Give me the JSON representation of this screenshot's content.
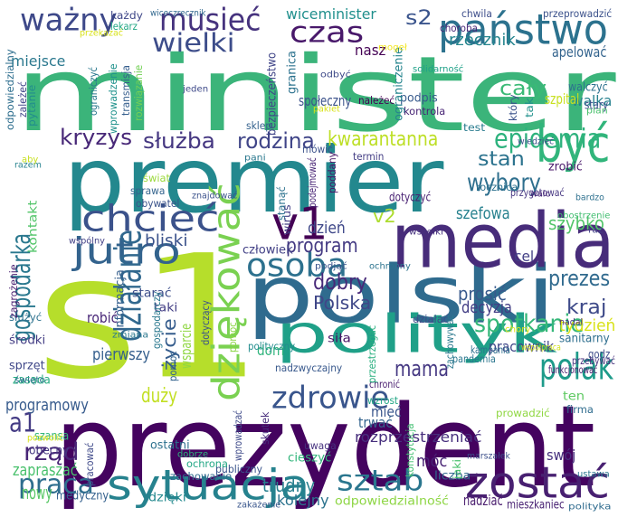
{
  "words": [
    {
      "text": "minister",
      "color": "#3bb47a"
    },
    {
      "text": "prezydent",
      "color": "#44035f"
    },
    {
      "text": "s1",
      "color": "#b6de2b"
    },
    {
      "text": "premier",
      "color": "#23888e"
    },
    {
      "text": "polski",
      "color": "#2f6b8e"
    },
    {
      "text": "media",
      "color": "#472c7a"
    },
    {
      "text": "polityk",
      "color": "#1fa088"
    },
    {
      "text": "dziękować",
      "color": "#7ad151"
    },
    {
      "text": "państwo",
      "color": "#2c728e"
    },
    {
      "text": "być",
      "color": "#31b57b"
    },
    {
      "text": "sytuacja",
      "color": "#26828e"
    },
    {
      "text": "zostać",
      "color": "#482071"
    },
    {
      "text": "polak",
      "color": "#1e9b8a"
    },
    {
      "text": "chcieć",
      "color": "#3b528b"
    },
    {
      "text": "jutro",
      "color": "#33638d"
    },
    {
      "text": "v1",
      "color": "#440154"
    },
    {
      "text": "osoba",
      "color": "#2d718e"
    },
    {
      "text": "zdrowie",
      "color": "#39558c"
    },
    {
      "text": "ważny",
      "color": "#3e4989"
    },
    {
      "text": "musieć",
      "color": "#46337e"
    },
    {
      "text": "czas",
      "color": "#48186a"
    },
    {
      "text": "wielki",
      "color": "#3d4d8a"
    },
    {
      "text": "działanie",
      "color": "#31688e"
    },
    {
      "text": "epidemia",
      "color": "#2db27d"
    },
    {
      "text": "spotkanie",
      "color": "#35b779"
    },
    {
      "text": "sztab",
      "color": "#2a768e"
    },
    {
      "text": "praca",
      "color": "#2e6e8e"
    },
    {
      "text": "rząd",
      "color": "#482576"
    },
    {
      "text": "kryzys",
      "color": "#482878"
    },
    {
      "text": "służba",
      "color": "#453781"
    },
    {
      "text": "rodzina",
      "color": "#404588"
    },
    {
      "text": "kwarantanna",
      "color": "#bddf26"
    },
    {
      "text": "wybory",
      "color": "#2e6f8e"
    },
    {
      "text": "gospodarka",
      "color": "#2a788e"
    },
    {
      "text": "program",
      "color": "#443a83"
    },
    {
      "text": "dobry",
      "color": "#482979"
    },
    {
      "text": "Polska",
      "color": "#3f4788"
    },
    {
      "text": "prezes",
      "color": "#306a8e"
    },
    {
      "text": "mama",
      "color": "#453882"
    },
    {
      "text": "a1",
      "color": "#443b84"
    },
    {
      "text": "s2",
      "color": "#3a548c"
    },
    {
      "text": "v2",
      "color": "#addc30"
    },
    {
      "text": "wiceminister",
      "color": "#21908d"
    },
    {
      "text": "rzecznik",
      "color": "#25858e"
    },
    {
      "text": "stan",
      "color": "#2c738e"
    },
    {
      "text": "cały",
      "color": "#3aba76"
    },
    {
      "text": "szefowa",
      "color": "#26818e"
    },
    {
      "text": "szybko",
      "color": "#52c569"
    },
    {
      "text": "kraj",
      "color": "#3e4a89"
    },
    {
      "text": "tydzień",
      "color": "#d8e219"
    },
    {
      "text": "prosić",
      "color": "#38598c"
    },
    {
      "text": "decyzja",
      "color": "#433e85"
    },
    {
      "text": "życie",
      "color": "#365d8d"
    },
    {
      "text": "duży",
      "color": "#c2df23"
    },
    {
      "text": "trudny",
      "color": "#277f8e"
    },
    {
      "text": "nowy",
      "color": "#58c765"
    },
    {
      "text": "dzień",
      "color": "#3f4889"
    },
    {
      "text": "bliski",
      "color": "#3b528b"
    },
    {
      "text": "robić",
      "color": "#482677"
    },
    {
      "text": "pierwszy",
      "color": "#355f8d"
    },
    {
      "text": "programowy",
      "color": "#375b8d"
    },
    {
      "text": "zapraszać",
      "color": "#4ac16d"
    },
    {
      "text": "kolejny",
      "color": "#2c738e"
    },
    {
      "text": "móc",
      "color": "#482374"
    },
    {
      "text": "nadziać",
      "color": "#481b6d"
    },
    {
      "text": "walka",
      "color": "#26818e"
    },
    {
      "text": "miejsce",
      "color": "#2a788e"
    },
    {
      "text": "apelować",
      "color": "#33638d"
    },
    {
      "text": "nasz",
      "color": "#440154"
    },
    {
      "text": "człowiek",
      "color": "#424086"
    },
    {
      "text": "rozprzestrzeniać",
      "color": "#472f7d"
    },
    {
      "text": "pracownik",
      "color": "#404688"
    },
    {
      "text": "sanitarny",
      "color": "#2e6e8e"
    },
    {
      "text": "mieć",
      "color": "#39558c"
    },
    {
      "text": "trwać",
      "color": "#33638d"
    },
    {
      "text": "dom",
      "color": "#2fb47c"
    },
    {
      "text": "wsparcie",
      "color": "#90d743"
    },
    {
      "text": "starać",
      "color": "#3d4e8a"
    },
    {
      "text": "medyczny",
      "color": "#34608d"
    },
    {
      "text": "zachowanie",
      "color": "#306a8e"
    },
    {
      "text": "ochrona",
      "color": "#22a785"
    },
    {
      "text": "odpowiedzialność",
      "color": "#8ed645"
    },
    {
      "text": "mieszkaniec",
      "color": "#482173"
    },
    {
      "text": "dzięki",
      "color": "#23898e"
    },
    {
      "text": "cieszyć",
      "color": "#31b57b"
    },
    {
      "text": "firma",
      "color": "#2f6c8e"
    },
    {
      "text": "swój",
      "color": "#46307e"
    },
    {
      "text": "ten",
      "color": "#5ec962"
    },
    {
      "text": "szpital",
      "color": "#c8e020"
    },
    {
      "text": "stary",
      "color": "#3c508b"
    },
    {
      "text": "walczyć",
      "color": "#2c718e"
    },
    {
      "text": "zrobić",
      "color": "#481769"
    },
    {
      "text": "przygotować",
      "color": "#453581"
    },
    {
      "text": "dotyczyć",
      "color": "#482172"
    },
    {
      "text": "kampania",
      "color": "#2e6f8e"
    },
    {
      "text": "godz",
      "color": "#3e4c8a"
    },
    {
      "text": "siła",
      "color": "#471365"
    },
    {
      "text": "cel",
      "color": "#423f85"
    },
    {
      "text": "podpis",
      "color": "#375a8c"
    },
    {
      "text": "kontrola",
      "color": "#482475"
    },
    {
      "text": "społeczny",
      "color": "#3b528b"
    },
    {
      "text": "granica",
      "color": "#2c728e"
    },
    {
      "text": "ograniczenie",
      "color": "#25848e"
    },
    {
      "text": "informacja",
      "color": "#355f8d"
    },
    {
      "text": "kontakt",
      "color": "#52c569"
    },
    {
      "text": "zasada",
      "color": "#27ad81"
    },
    {
      "text": "sprzęt",
      "color": "#3f4788"
    },
    {
      "text": "szansa",
      "color": "#31b57b"
    },
    {
      "text": "obecny",
      "color": "#453781"
    },
    {
      "text": "ostatni",
      "color": "#2d718e"
    },
    {
      "text": "publiczny",
      "color": "#3a548c"
    },
    {
      "text": "uwaga",
      "color": "#46327e"
    },
    {
      "text": "liczba",
      "color": "#31688e"
    },
    {
      "text": "prowadzić",
      "color": "#90d743"
    },
    {
      "text": "nadzwyczajny",
      "color": "#38588c"
    },
    {
      "text": "chronić",
      "color": "#481c6e"
    },
    {
      "text": "funkcjonować",
      "color": "#481b6d"
    },
    {
      "text": "przebywać",
      "color": "#472e7c"
    },
    {
      "text": "współpraca",
      "color": "#d0e11c"
    },
    {
      "text": "pandemia",
      "color": "#2a768e"
    },
    {
      "text": "wzrost",
      "color": "#21a685"
    },
    {
      "text": "skutek",
      "color": "#472d7b"
    },
    {
      "text": "środki",
      "color": "#433d84"
    },
    {
      "text": "służyć",
      "color": "#2c718e"
    },
    {
      "text": "świat",
      "color": "#9bd93c"
    },
    {
      "text": "sprawa",
      "color": "#33638d"
    },
    {
      "text": "obywatel",
      "color": "#3a538b"
    },
    {
      "text": "znajdować",
      "color": "#3b528b"
    },
    {
      "text": "wprowadzać",
      "color": "#3e4a89"
    },
    {
      "text": "wprowadzenie",
      "color": "#20928c"
    },
    {
      "text": "transmisja",
      "color": "#355e8d"
    },
    {
      "text": "rozwiązanie",
      "color": "#73d056"
    },
    {
      "text": "ograniczyć",
      "color": "#2a788e"
    },
    {
      "text": "pytanie",
      "color": "#228d8d"
    },
    {
      "text": "odpowiedzialny",
      "color": "#2e6e8e"
    },
    {
      "text": "zależeć",
      "color": "#404588"
    },
    {
      "text": "razem",
      "color": "#26828e"
    },
    {
      "text": "aby",
      "color": "#c8e020"
    },
    {
      "text": "bezpieczeństwo",
      "color": "#404588"
    },
    {
      "text": "sklep",
      "color": "#34618d"
    },
    {
      "text": "mówić",
      "color": "#3b518b"
    },
    {
      "text": "termin",
      "color": "#433d84"
    },
    {
      "text": "podejmować",
      "color": "#482475"
    },
    {
      "text": "poddany",
      "color": "#481467"
    },
    {
      "text": "rocznica",
      "color": "#2c718e"
    },
    {
      "text": "zagrożenie",
      "color": "#481f70"
    },
    {
      "text": "każdy",
      "color": "#3f4788"
    },
    {
      "text": "lekarz",
      "color": "#22a785"
    },
    {
      "text": "wiceczrecznik",
      "color": "#31688e"
    },
    {
      "text": "mogeł",
      "color": "#f1e51d"
    },
    {
      "text": "chwila",
      "color": "#3d4d8a"
    },
    {
      "text": "choroba",
      "color": "#482878"
    },
    {
      "text": "przeprowadzić",
      "color": "#3b518b"
    },
    {
      "text": "solidarność",
      "color": "#1fa188"
    },
    {
      "text": "należeć",
      "color": "#440154"
    },
    {
      "text": "odbyć",
      "color": "#3e4a89"
    },
    {
      "text": "pani",
      "color": "#2a788e"
    },
    {
      "text": "jeden",
      "color": "#3e4989"
    },
    {
      "text": "przekazać",
      "color": "#d8e219"
    },
    {
      "text": "pakiet",
      "color": "#d8e219"
    },
    {
      "text": "bardzo",
      "color": "#2d708e"
    },
    {
      "text": "obostrzenie",
      "color": "#42be71"
    },
    {
      "text": "raz",
      "color": "#414287"
    },
    {
      "text": "wszelki",
      "color": "#46307e"
    },
    {
      "text": "ochronny",
      "color": "#2c738e"
    },
    {
      "text": "podjąć",
      "color": "#3a548c"
    },
    {
      "text": "stanąć",
      "color": "#2c728e"
    },
    {
      "text": "wirus",
      "color": "#433e85"
    },
    {
      "text": "wspólny",
      "color": "#424186"
    },
    {
      "text": "polityczny",
      "color": "#228c8d"
    },
    {
      "text": "działać",
      "color": "#3e4c8a"
    },
    {
      "text": "przestrzegać",
      "color": "#29af7f"
    },
    {
      "text": "zachowywać",
      "color": "#2a788e"
    },
    {
      "text": "chory",
      "color": "#e2e418"
    },
    {
      "text": "nadal",
      "color": "#472d7b"
    },
    {
      "text": "wiedzieć",
      "color": "#3c4f8a"
    },
    {
      "text": "walc",
      "color": "#482576"
    },
    {
      "text": "test",
      "color": "#297b8e"
    },
    {
      "text": "plan",
      "color": "#4ac16d"
    },
    {
      "text": "który",
      "color": "#3b528b"
    },
    {
      "text": "tak",
      "color": "#21918c"
    },
    {
      "text": "taki",
      "color": "#433e85"
    },
    {
      "text": "pomóc",
      "color": "#8bd646"
    },
    {
      "text": "zmiana",
      "color": "#2a788e"
    },
    {
      "text": "święto",
      "color": "#2e6f8e"
    },
    {
      "text": "pozwolić",
      "color": "#d8e219"
    },
    {
      "text": "pracować",
      "color": "#3e4989"
    },
    {
      "text": "dobrze",
      "color": "#2fb47c"
    },
    {
      "text": "zakażenie",
      "color": "#39568c"
    },
    {
      "text": "jaki",
      "color": "#4ac16d"
    },
    {
      "text": "marszałek",
      "color": "#3c4f8a"
    },
    {
      "text": "konstytucja",
      "color": "#42be71"
    },
    {
      "text": "ustawa",
      "color": "#2a768e"
    },
    {
      "text": "polityka",
      "color": "#2f6b8e"
    },
    {
      "text": "pomoc",
      "color": "#33638d"
    },
    {
      "text": "gospodarczy",
      "color": "#2a788e"
    },
    {
      "text": "dotyczący",
      "color": "#3b528b"
    }
  ]
}
